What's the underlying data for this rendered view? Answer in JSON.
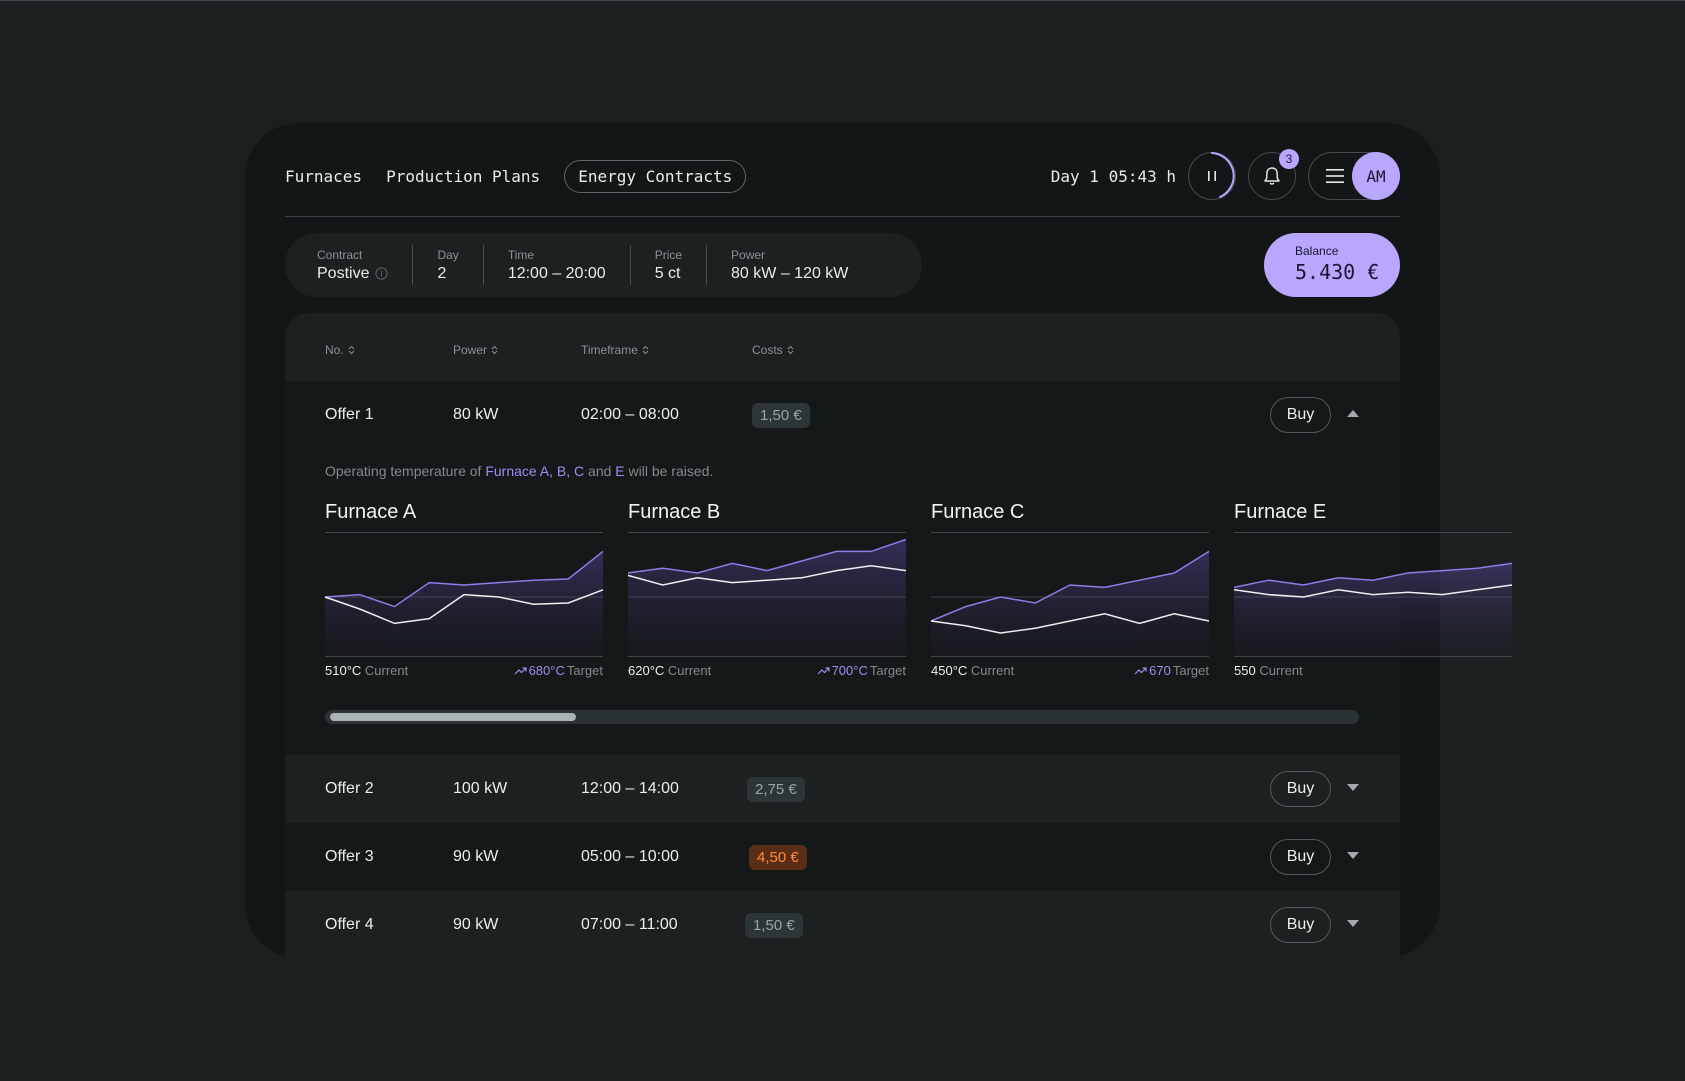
{
  "nav": {
    "items": [
      "Furnaces",
      "Production Plans",
      "Energy Contracts"
    ],
    "active": "Energy Contracts",
    "clock": "Day 1 05:43 h",
    "notification_count": "3",
    "avatar_initials": "AM"
  },
  "contract": {
    "contract_label": "Contract",
    "contract_value": "Postive",
    "day_label": "Day",
    "day_value": "2",
    "time_label": "Time",
    "time_value": "12:00 – 20:00",
    "price_label": "Price",
    "price_value": "5 ct",
    "power_label": "Power",
    "power_value": "80 kW – 120 kW"
  },
  "balance": {
    "label": "Balance",
    "value": "5.430 €"
  },
  "table": {
    "headers": [
      "No.",
      "Power",
      "Timeframe",
      "Costs"
    ],
    "buy_label": "Buy",
    "offers": [
      {
        "name": "Offer 1",
        "power": "80 kW",
        "timeframe": "02:00 – 08:00",
        "cost": "1,50 €",
        "cost_status": "normal",
        "expanded": true
      },
      {
        "name": "Offer 2",
        "power": "100 kW",
        "timeframe": "12:00 – 14:00",
        "cost": "2,75 €",
        "cost_status": "normal",
        "expanded": false
      },
      {
        "name": "Offer 3",
        "power": "90 kW",
        "timeframe": "05:00 – 10:00",
        "cost": "4,50 €",
        "cost_status": "warning",
        "expanded": false
      },
      {
        "name": "Offer 4",
        "power": "90 kW",
        "timeframe": "07:00 – 11:00",
        "cost": "1,50 €",
        "cost_status": "normal",
        "expanded": false
      }
    ]
  },
  "details": {
    "note": {
      "prefix": "Operating temperature of ",
      "hl1": "Furnace A, B, C",
      "mid": " and ",
      "hl2": "E",
      "suffix": " will be raised."
    },
    "current_label": "Current",
    "target_label": "Target",
    "scroll_position": 0.24,
    "furnaces": [
      {
        "name": "Furnace A",
        "current": "510°C",
        "target": "680°C",
        "target_series": [
          0.5,
          0.52,
          0.42,
          0.62,
          0.6,
          0.62,
          0.64,
          0.65,
          0.88
        ],
        "current_series": [
          0.5,
          0.4,
          0.28,
          0.32,
          0.52,
          0.5,
          0.44,
          0.45,
          0.56
        ]
      },
      {
        "name": "Furnace B",
        "current": "620°C",
        "target": "700°C",
        "target_series": [
          0.7,
          0.74,
          0.7,
          0.78,
          0.72,
          0.8,
          0.88,
          0.88,
          0.98
        ],
        "current_series": [
          0.68,
          0.6,
          0.66,
          0.62,
          0.64,
          0.66,
          0.72,
          0.76,
          0.72
        ]
      },
      {
        "name": "Furnace C",
        "current": "450°C",
        "target": "670",
        "target_series": [
          0.3,
          0.42,
          0.5,
          0.45,
          0.6,
          0.58,
          0.64,
          0.7,
          0.88
        ],
        "current_series": [
          0.3,
          0.26,
          0.2,
          0.24,
          0.3,
          0.36,
          0.28,
          0.36,
          0.3
        ]
      },
      {
        "name": "Furnace E",
        "current": "550",
        "target": "",
        "target_series": [
          0.58,
          0.64,
          0.6,
          0.66,
          0.64,
          0.7,
          0.72,
          0.74,
          0.78
        ],
        "current_series": [
          0.56,
          0.52,
          0.5,
          0.56,
          0.52,
          0.54,
          0.52,
          0.56,
          0.6
        ]
      }
    ]
  },
  "colors": {
    "accent": "#b8a6ff",
    "accent_line": "#8f7ce6",
    "warning": "#ff8a3d"
  }
}
